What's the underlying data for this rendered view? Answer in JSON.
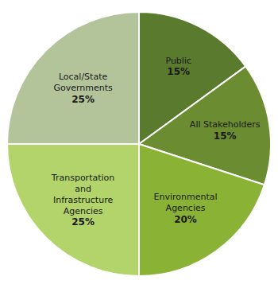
{
  "chart_data": {
    "type": "pie",
    "categories": [
      "Public",
      "All Stakeholders",
      "Environmental\nAgencies",
      "Transportation\nand\nInfrastructure\nAgencies",
      "Local/State\nGovernments"
    ],
    "values": [
      15,
      15,
      20,
      25,
      25
    ],
    "value_labels": [
      "15%",
      "15%",
      "20%",
      "25%",
      "25%"
    ],
    "colors": [
      "#5a7a2e",
      "#6b8c30",
      "#8ab336",
      "#b2d46a",
      "#b3c49a"
    ],
    "data_labels": true
  }
}
